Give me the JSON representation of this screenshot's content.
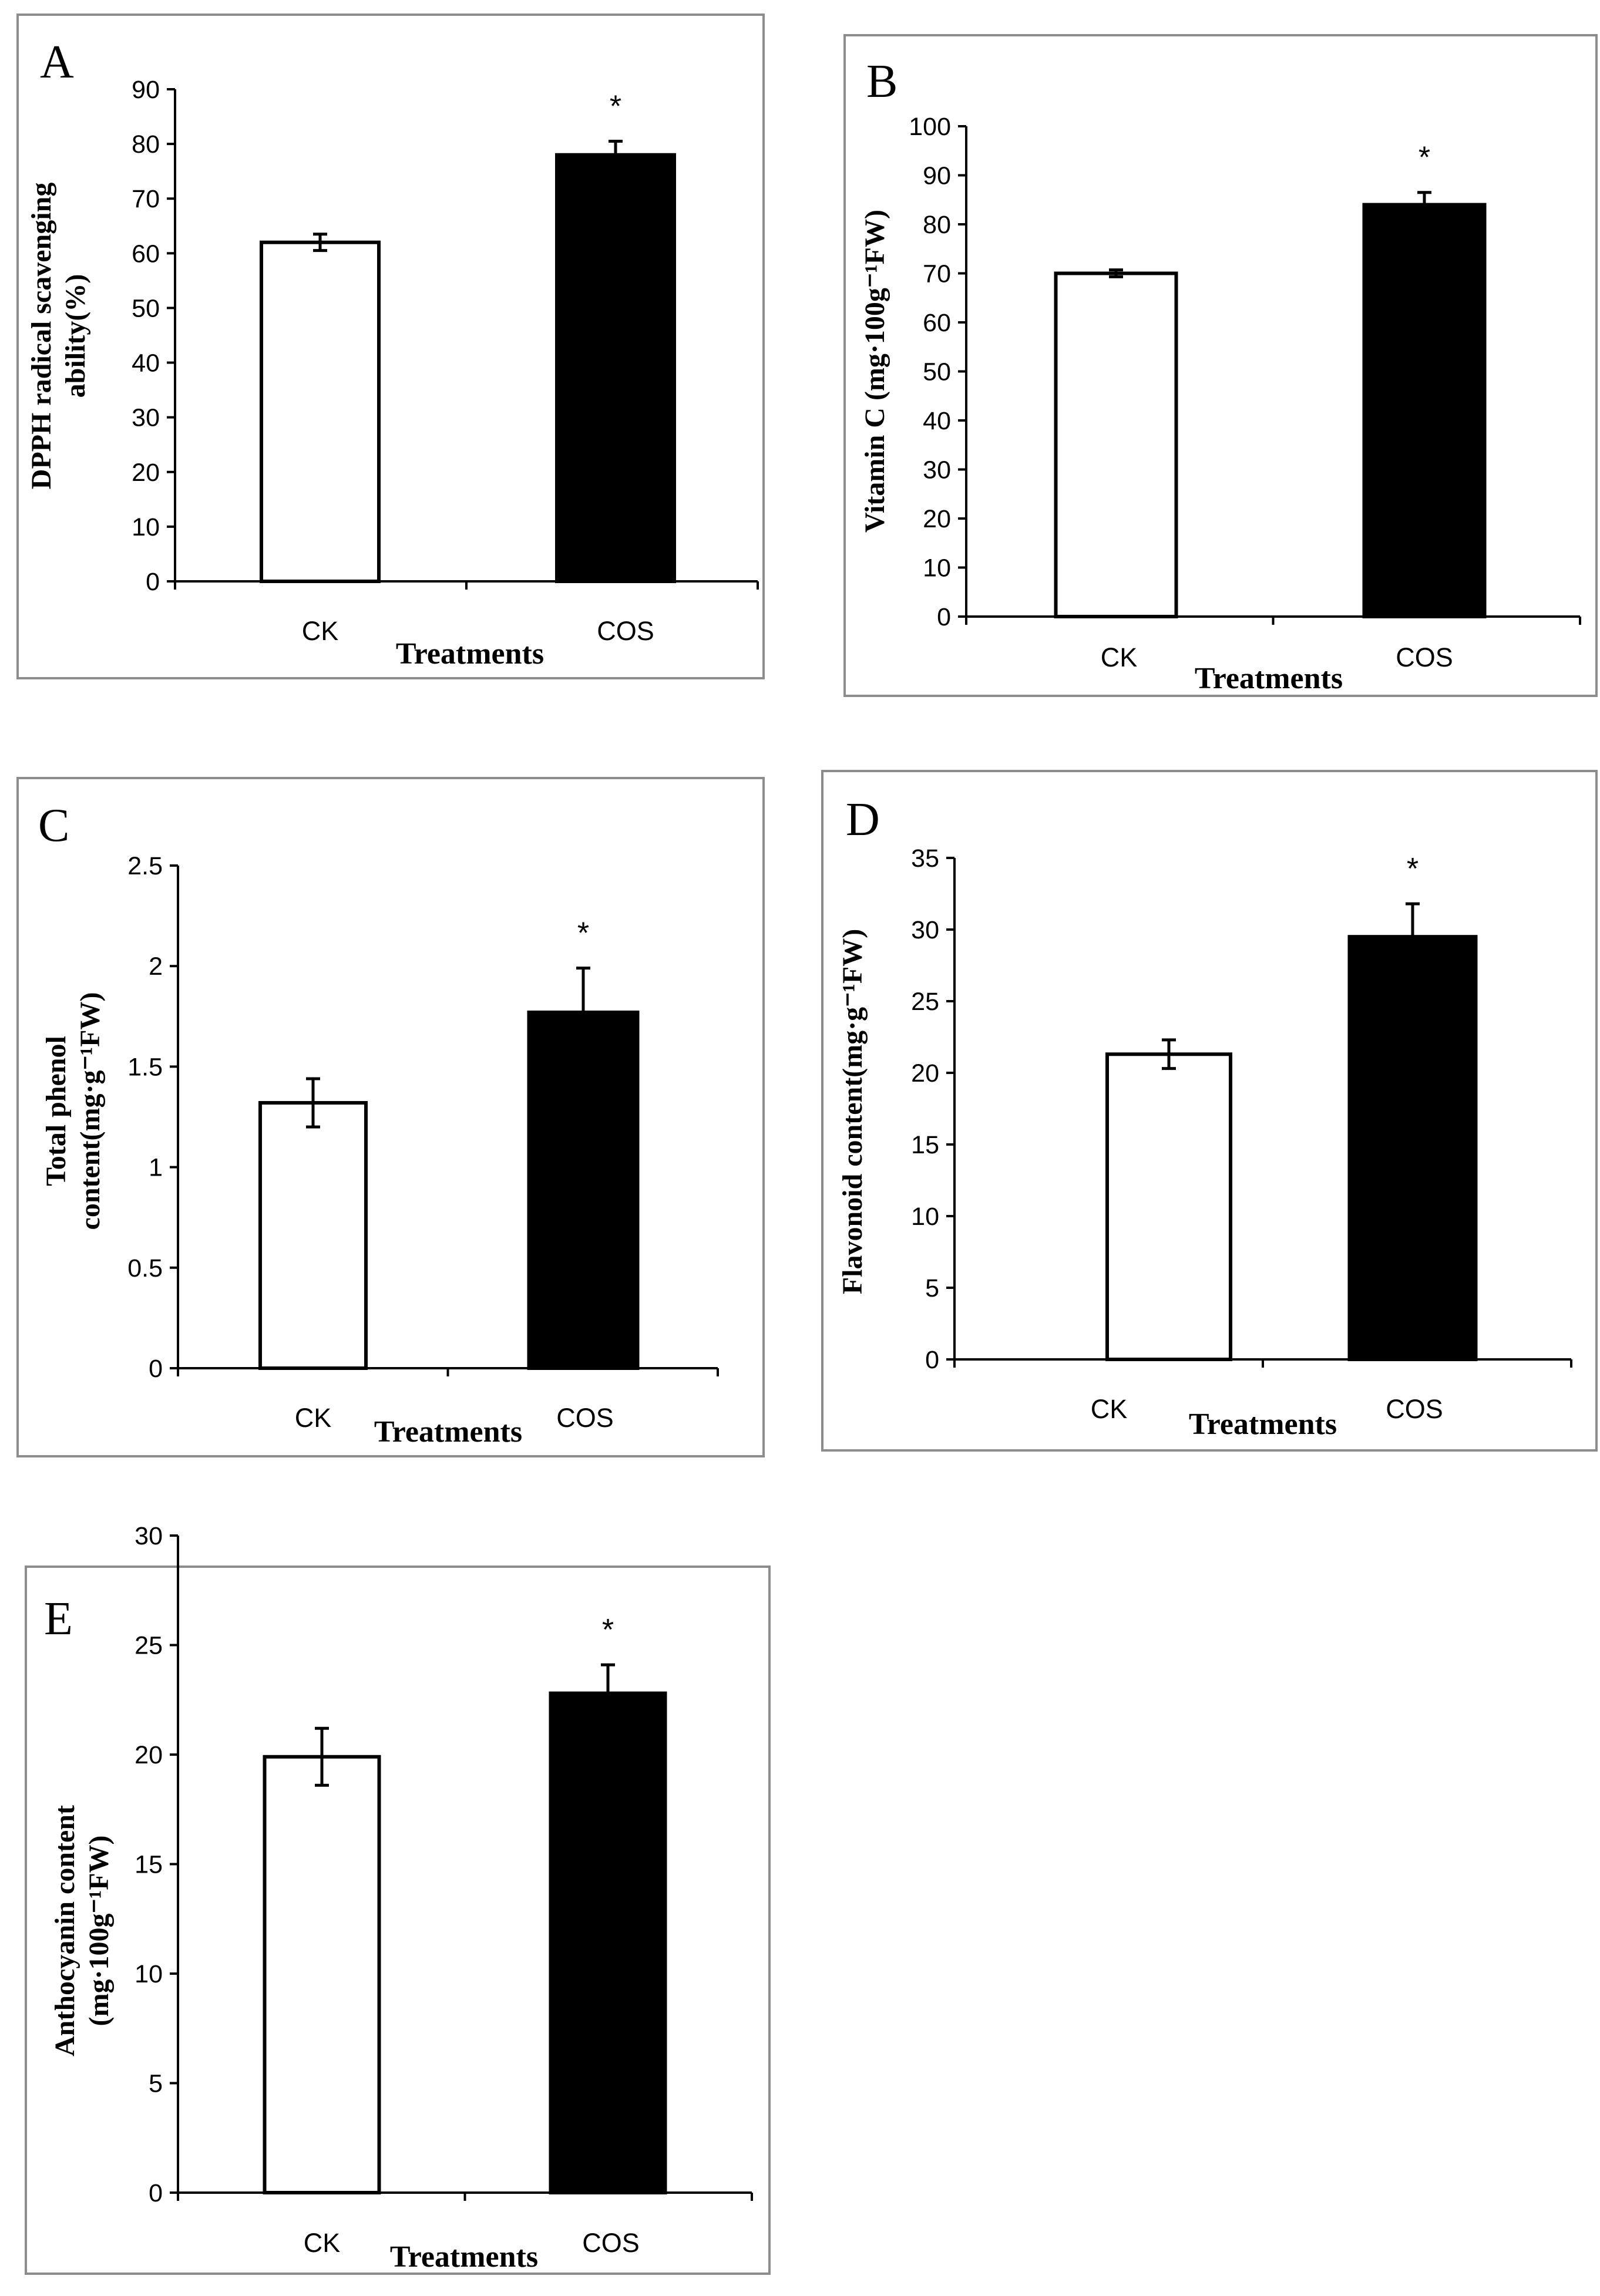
{
  "figure": {
    "description_hidden": false
  },
  "chart_data": [
    {
      "panel": "A",
      "type": "bar",
      "categories": [
        "CK",
        "COS"
      ],
      "values": [
        62,
        78
      ],
      "errors": [
        1.5,
        2.5
      ],
      "significance": [
        "",
        "*"
      ],
      "xlabel": "Treatments",
      "ylabel_lines": [
        "DPPH radical scavenging",
        "ability(%)"
      ],
      "ylim": [
        0,
        90
      ],
      "yticks": [
        0,
        10,
        20,
        30,
        40,
        50,
        60,
        70,
        80,
        90
      ],
      "ytick_labels": [
        "0",
        "10",
        "20",
        "30",
        "40",
        "50",
        "60",
        "70",
        "80",
        "90"
      ],
      "bar_colors": [
        "#ffffff",
        "#000000"
      ]
    },
    {
      "panel": "B",
      "type": "bar",
      "categories": [
        "CK",
        "COS"
      ],
      "values": [
        70,
        84
      ],
      "errors": [
        0.7,
        2.5
      ],
      "significance": [
        "",
        "*"
      ],
      "xlabel": "Treatments",
      "ylabel_lines": [
        "Vitamin C (mg·100g⁻¹FW)"
      ],
      "ylim": [
        0,
        100
      ],
      "yticks": [
        0,
        10,
        20,
        30,
        40,
        50,
        60,
        70,
        80,
        90,
        100
      ],
      "ytick_labels": [
        "0",
        "10",
        "20",
        "30",
        "40",
        "50",
        "60",
        "70",
        "80",
        "90",
        "100"
      ],
      "bar_colors": [
        "#ffffff",
        "#000000"
      ]
    },
    {
      "panel": "C",
      "type": "bar",
      "categories": [
        "CK",
        "COS"
      ],
      "values": [
        1.32,
        1.77
      ],
      "errors": [
        0.12,
        0.22
      ],
      "significance": [
        "",
        "*"
      ],
      "xlabel": "Treatments",
      "ylabel_lines": [
        "Total phenol",
        "content(mg·g⁻¹FW)"
      ],
      "ylim": [
        0,
        2.5
      ],
      "yticks": [
        0,
        0.5,
        1,
        1.5,
        2,
        2.5
      ],
      "ytick_labels": [
        "0",
        "0.5",
        "1",
        "1.5",
        "2",
        "2.5"
      ],
      "bar_colors": [
        "#ffffff",
        "#000000"
      ]
    },
    {
      "panel": "D",
      "type": "bar",
      "categories": [
        "CK",
        "COS"
      ],
      "values": [
        21.3,
        29.5
      ],
      "errors": [
        1.0,
        2.3
      ],
      "significance": [
        "",
        "*"
      ],
      "xlabel": "Treatments",
      "ylabel_lines": [
        "Flavonoid content(mg·g⁻¹FW)"
      ],
      "ylim": [
        0,
        35
      ],
      "yticks": [
        0,
        5,
        10,
        15,
        20,
        25,
        30,
        35
      ],
      "ytick_labels": [
        "0",
        "5",
        "10",
        "15",
        "20",
        "25",
        "30",
        "35"
      ],
      "bar_colors": [
        "#ffffff",
        "#000000"
      ]
    },
    {
      "panel": "E",
      "type": "bar",
      "categories": [
        "CK",
        "COS"
      ],
      "values": [
        19.9,
        22.8
      ],
      "errors": [
        1.3,
        1.3
      ],
      "significance": [
        "",
        "*"
      ],
      "xlabel": "Treatments",
      "ylabel_lines": [
        "Anthocyanin content",
        "(mg·100g⁻¹FW)"
      ],
      "ylim": [
        0,
        30
      ],
      "yticks": [
        0,
        5,
        10,
        15,
        20,
        25,
        30
      ],
      "ytick_labels": [
        "0",
        "5",
        "10",
        "15",
        "20",
        "25",
        "30"
      ],
      "bar_colors": [
        "#ffffff",
        "#000000"
      ]
    }
  ]
}
